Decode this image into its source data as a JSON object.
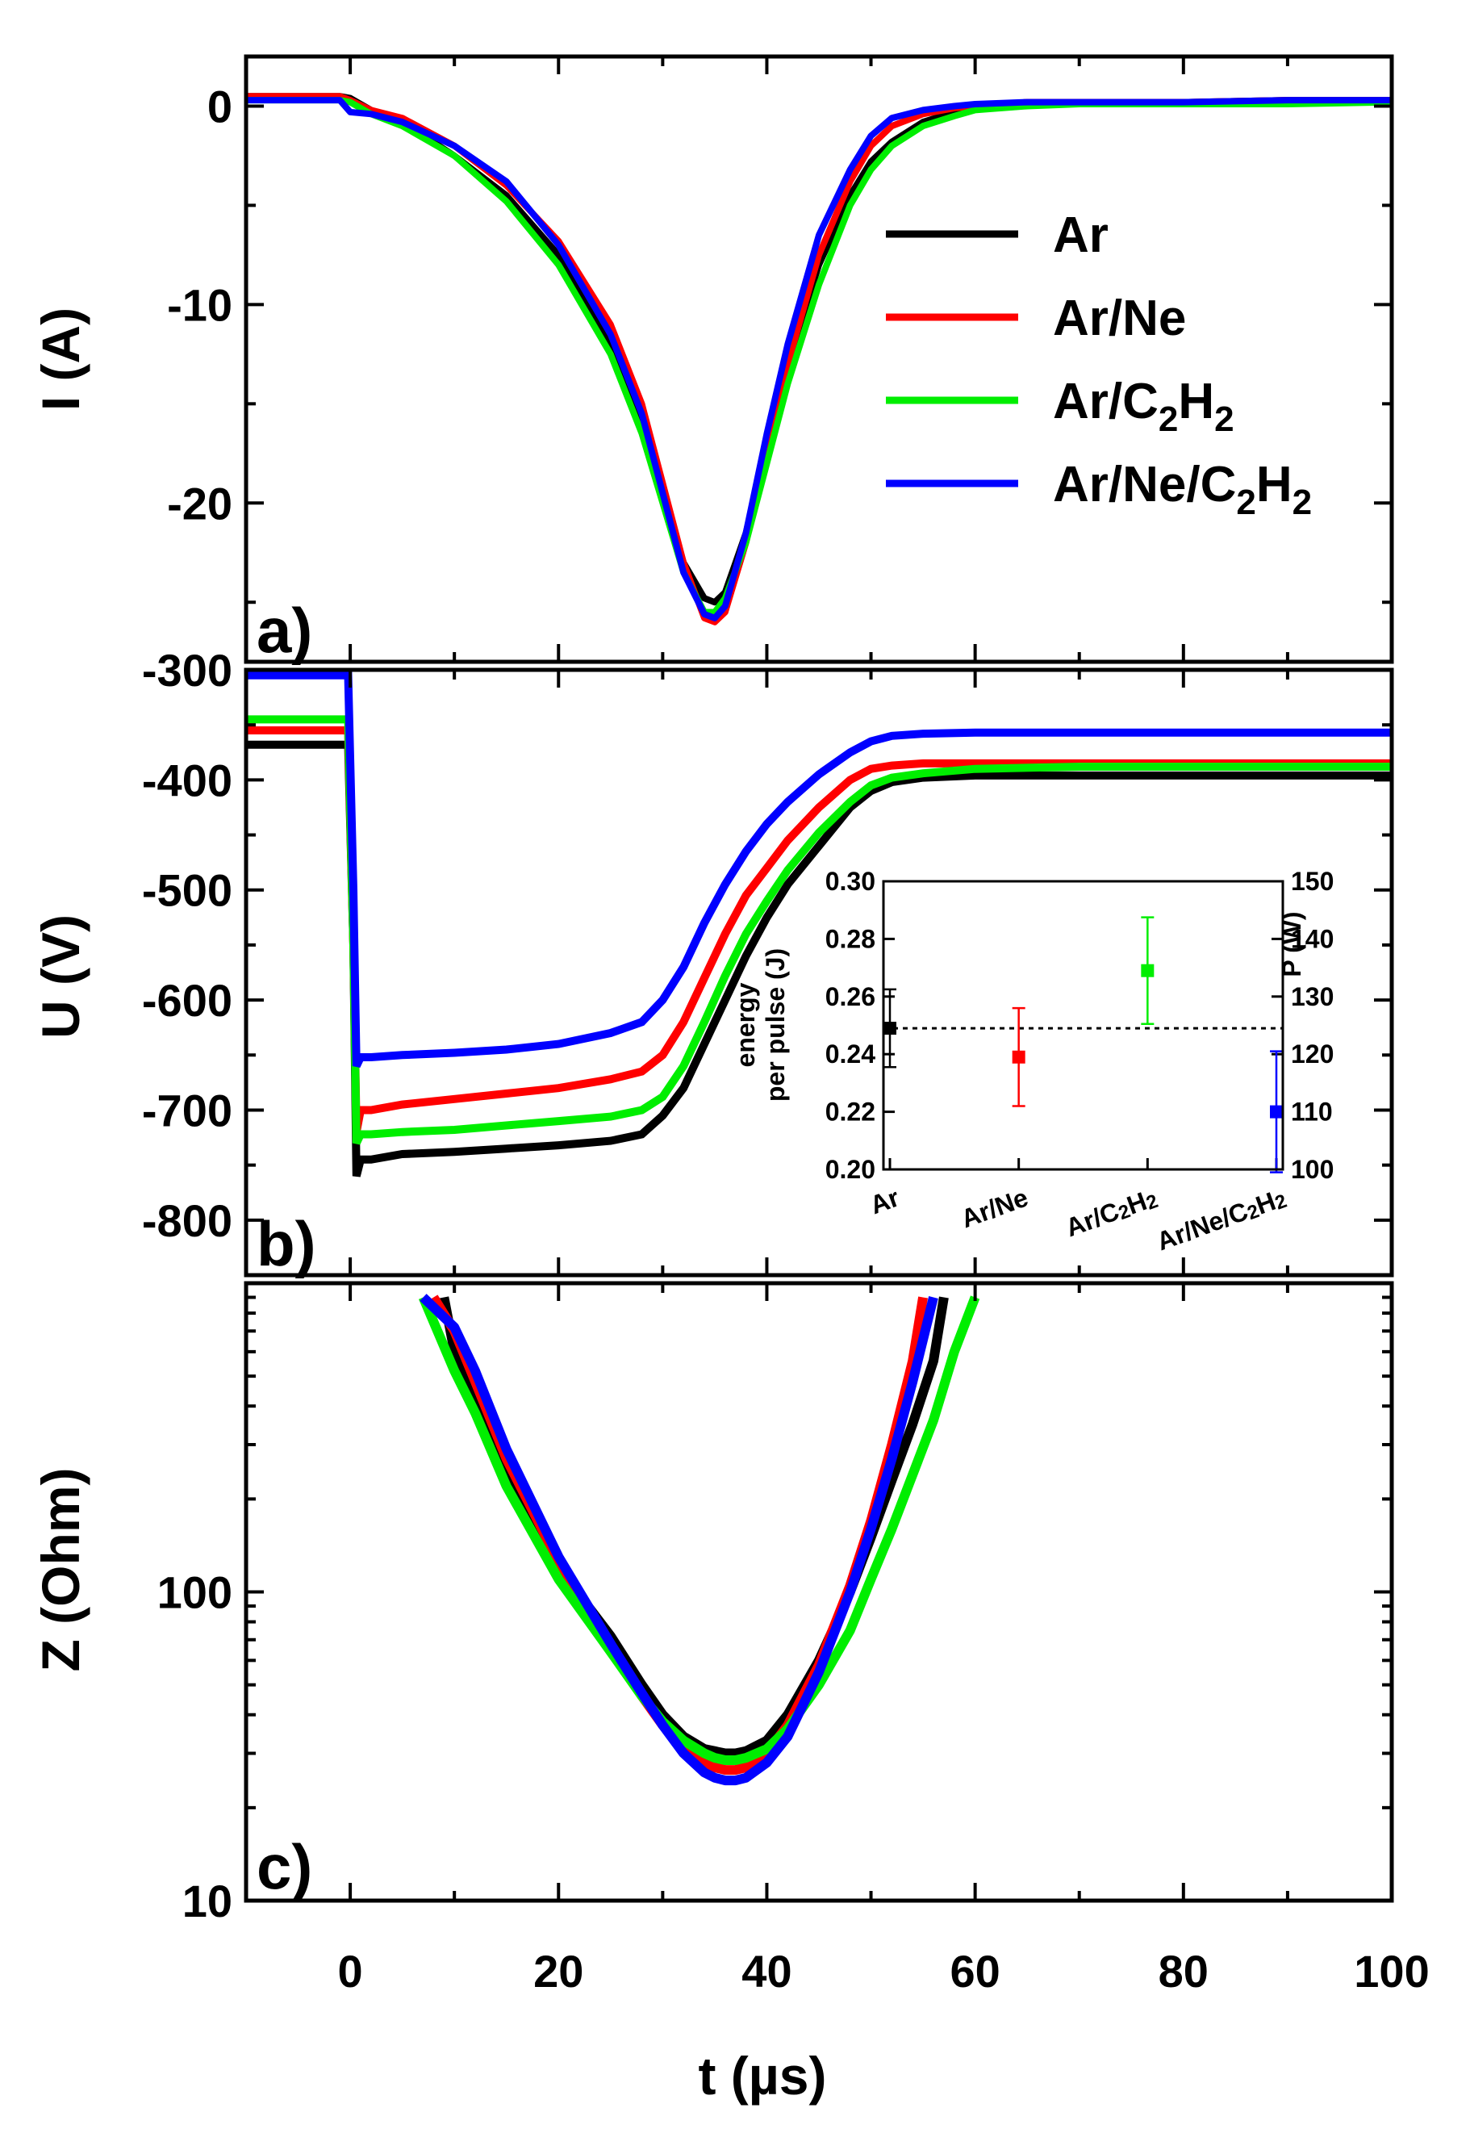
{
  "figure": {
    "shared_x_axis": {
      "title": "t (µs)",
      "ticks": [
        0,
        20,
        40,
        60,
        80,
        100
      ],
      "range": [
        -10,
        100
      ]
    },
    "series_colors": {
      "Ar": "#000000",
      "Ar/Ne": "#ff0000",
      "Ar/C2H2": "#00ee00",
      "Ar/Ne/C2H2": "#0000ff"
    }
  },
  "chart_data": [
    {
      "panel": "a)",
      "type": "line",
      "xlabel": "t (µs)",
      "ylabel": "I (A)",
      "xlim": [
        -10,
        100
      ],
      "ylim": [
        -28,
        2.5
      ],
      "yticks": [
        0,
        -10,
        -20
      ],
      "legend": {
        "placement": "top-right",
        "entries": [
          {
            "name": "Ar",
            "color": "#000000",
            "label_main": "Ar",
            "segments": []
          },
          {
            "name": "Ar/Ne",
            "color": "#ff0000",
            "label_main": "Ar/Ne",
            "segments": []
          },
          {
            "name": "Ar/C2H2",
            "color": "#00ee00",
            "label_main": "Ar/C",
            "segments": [
              {
                "sub": "2"
              },
              {
                "main": "H"
              },
              {
                "sub": "2"
              }
            ]
          },
          {
            "name": "Ar/Ne/C2H2",
            "color": "#0000ff",
            "label_main": "Ar/Ne/C",
            "segments": [
              {
                "sub": "2"
              },
              {
                "main": "H"
              },
              {
                "sub": "2"
              }
            ]
          }
        ]
      },
      "series": [
        {
          "name": "Ar",
          "color": "#000000",
          "x": [
            -10,
            -1,
            0,
            2,
            5,
            10,
            15,
            20,
            25,
            28,
            30,
            32,
            34,
            35,
            36,
            38,
            40,
            42,
            45,
            48,
            50,
            52,
            55,
            58,
            60,
            65,
            70,
            80,
            90,
            100
          ],
          "y": [
            0.5,
            0.5,
            0.4,
            -0.2,
            -0.8,
            -2.5,
            -4.5,
            -7.5,
            -12,
            -16,
            -19.5,
            -23,
            -24.8,
            -25,
            -24.5,
            -21.5,
            -17,
            -13,
            -8,
            -4.5,
            -2.8,
            -1.8,
            -0.8,
            -0.3,
            0,
            0.2,
            0.2,
            0.2,
            0.3,
            0.3
          ]
        },
        {
          "name": "Ar/Ne",
          "color": "#ff0000",
          "x": [
            -10,
            -1,
            0,
            2,
            5,
            10,
            15,
            20,
            25,
            28,
            30,
            32,
            34,
            35,
            36,
            38,
            40,
            42,
            45,
            48,
            50,
            52,
            55,
            58,
            60,
            65,
            70,
            80,
            90,
            100
          ],
          "y": [
            0.5,
            0.5,
            0.3,
            -0.2,
            -0.6,
            -2,
            -4,
            -6.8,
            -11,
            -15,
            -19,
            -23,
            -25.8,
            -26,
            -25.5,
            -22,
            -17.5,
            -13,
            -7.5,
            -3.8,
            -2,
            -1,
            -0.4,
            -0.1,
            0,
            0.2,
            0.2,
            0.2,
            0.3,
            0.3
          ]
        },
        {
          "name": "Ar/C2H2",
          "color": "#00ee00",
          "x": [
            -10,
            -1,
            0,
            2,
            5,
            10,
            15,
            20,
            25,
            28,
            30,
            32,
            34,
            35,
            36,
            38,
            40,
            42,
            45,
            48,
            50,
            52,
            55,
            58,
            60,
            65,
            70,
            80,
            90,
            100
          ],
          "y": [
            0.3,
            0.3,
            0.2,
            -0.4,
            -1,
            -2.5,
            -4.8,
            -8,
            -12.5,
            -16.5,
            -20,
            -23.5,
            -25.5,
            -25.5,
            -24.8,
            -22,
            -18,
            -14,
            -9,
            -5,
            -3.2,
            -2,
            -1,
            -0.5,
            -0.2,
            0,
            0.1,
            0.1,
            0.1,
            0.2
          ]
        },
        {
          "name": "Ar/Ne/C2H2",
          "color": "#0000ff",
          "x": [
            -10,
            -1,
            0,
            2,
            5,
            10,
            15,
            20,
            25,
            28,
            30,
            32,
            34,
            35,
            36,
            38,
            40,
            42,
            45,
            48,
            50,
            52,
            55,
            58,
            60,
            65,
            70,
            80,
            90,
            100
          ],
          "y": [
            0.3,
            0.3,
            -0.3,
            -0.4,
            -0.8,
            -2,
            -3.8,
            -7,
            -11.5,
            -15.5,
            -19.5,
            -23.5,
            -25.6,
            -25.8,
            -25.2,
            -21.5,
            -16.5,
            -12,
            -6.5,
            -3.2,
            -1.5,
            -0.6,
            -0.2,
            0,
            0.1,
            0.2,
            0.2,
            0.2,
            0.3,
            0.3
          ]
        }
      ]
    },
    {
      "panel": "b)",
      "type": "line",
      "xlabel": "t (µs)",
      "ylabel": "U (V)",
      "xlim": [
        -10,
        100
      ],
      "ylim": [
        -850,
        -300
      ],
      "yticks": [
        -300,
        -400,
        -500,
        -600,
        -700,
        -800
      ],
      "series": [
        {
          "name": "Ar",
          "color": "#000000",
          "x": [
            -10,
            -0.2,
            0.3,
            0.6,
            1,
            2,
            5,
            10,
            15,
            20,
            25,
            28,
            30,
            32,
            34,
            36,
            38,
            40,
            42,
            45,
            48,
            50,
            52,
            55,
            60,
            70,
            80,
            90,
            100
          ],
          "y": [
            -368,
            -368,
            -550,
            -760,
            -745,
            -745,
            -740,
            -738,
            -735,
            -732,
            -728,
            -722,
            -705,
            -680,
            -640,
            -600,
            -560,
            -525,
            -495,
            -460,
            -425,
            -410,
            -402,
            -398,
            -396,
            -396,
            -396,
            -396,
            -396
          ]
        },
        {
          "name": "Ar/Ne",
          "color": "#ff0000",
          "x": [
            -10,
            -0.2,
            0.3,
            0.6,
            1,
            2,
            5,
            10,
            15,
            20,
            25,
            28,
            30,
            32,
            34,
            36,
            38,
            40,
            42,
            45,
            48,
            50,
            52,
            55,
            60,
            70,
            80,
            90,
            100
          ],
          "y": [
            -355,
            -355,
            -550,
            -720,
            -700,
            -700,
            -695,
            -690,
            -685,
            -680,
            -672,
            -665,
            -650,
            -620,
            -580,
            -540,
            -505,
            -480,
            -455,
            -425,
            -400,
            -390,
            -387,
            -385,
            -385,
            -385,
            -385,
            -385,
            -385
          ]
        },
        {
          "name": "Ar/C2H2",
          "color": "#00ee00",
          "x": [
            -10,
            -0.2,
            0.3,
            0.6,
            1,
            2,
            5,
            10,
            15,
            20,
            25,
            28,
            30,
            32,
            34,
            36,
            38,
            40,
            42,
            45,
            48,
            50,
            52,
            55,
            60,
            70,
            80,
            90,
            100
          ],
          "y": [
            -345,
            -345,
            -550,
            -730,
            -722,
            -722,
            -720,
            -718,
            -714,
            -710,
            -706,
            -700,
            -688,
            -660,
            -620,
            -578,
            -540,
            -510,
            -482,
            -448,
            -420,
            -405,
            -398,
            -394,
            -390,
            -388,
            -388,
            -388,
            -388
          ]
        },
        {
          "name": "Ar/Ne/C2H2",
          "color": "#0000ff",
          "x": [
            -10,
            -0.2,
            0.3,
            0.6,
            1,
            2,
            5,
            10,
            15,
            20,
            25,
            28,
            30,
            32,
            34,
            36,
            38,
            40,
            42,
            45,
            48,
            50,
            52,
            55,
            60,
            70,
            80,
            90,
            100
          ],
          "y": [
            -305,
            -305,
            -500,
            -660,
            -652,
            -652,
            -650,
            -648,
            -645,
            -640,
            -630,
            -620,
            -600,
            -570,
            -530,
            -495,
            -465,
            -440,
            -420,
            -395,
            -375,
            -365,
            -360,
            -358,
            -357,
            -357,
            -357,
            -357,
            -357
          ]
        }
      ]
    },
    {
      "panel": "b) inset",
      "type": "scatter",
      "categories": [
        "Ar",
        "Ar/Ne",
        "Ar/C2H2",
        "Ar/Ne/C2H2"
      ],
      "category_labels": [
        {
          "main": "Ar",
          "segments": []
        },
        {
          "main": "Ar/Ne",
          "segments": []
        },
        {
          "main": "Ar/C",
          "segments": [
            {
              "sub": "2"
            },
            {
              "main": "H"
            },
            {
              "sub": "2"
            }
          ]
        },
        {
          "main": "Ar/Ne/C",
          "segments": [
            {
              "sub": "2"
            },
            {
              "main": "H"
            },
            {
              "sub": "2"
            }
          ]
        }
      ],
      "ylabel_line1": "energy",
      "ylabel_line2": "per pulse (J)",
      "y2label": "P (W)",
      "ylim": [
        0.2,
        0.3
      ],
      "yticks": [
        "0.20",
        "0.22",
        "0.24",
        "0.26",
        "0.28",
        "0.30"
      ],
      "y2lim": [
        100,
        150
      ],
      "y2ticks": [
        "100",
        "110",
        "120",
        "130",
        "140",
        "150"
      ],
      "reference_line": 0.249,
      "series": [
        {
          "name": "energy per pulse",
          "values": [
            0.249,
            0.239,
            0.269,
            0.22
          ],
          "errors": [
            0.0135,
            0.017,
            0.0185,
            0.021
          ],
          "colors": [
            "#000000",
            "#ff0000",
            "#00ee00",
            "#0000ff"
          ]
        }
      ]
    },
    {
      "panel": "c)",
      "type": "line",
      "xlabel": "t (µs)",
      "ylabel": "Z (Ohm)",
      "y_scale": "log",
      "xlim": [
        -10,
        100
      ],
      "ylim": [
        10,
        1000
      ],
      "yticks": [
        "10",
        "100"
      ],
      "series": [
        {
          "name": "Ar",
          "color": "#000000",
          "x": [
            9,
            10,
            12,
            15,
            20,
            25,
            28,
            30,
            32,
            34,
            35,
            36,
            37,
            38,
            40,
            42,
            45,
            48,
            50,
            52,
            54,
            56,
            57
          ],
          "y": [
            900,
            600,
            420,
            240,
            120,
            72,
            50,
            40,
            34,
            31,
            30.5,
            30,
            30,
            30.5,
            33,
            40,
            60,
            100,
            150,
            230,
            350,
            560,
            900
          ]
        },
        {
          "name": "Ar/Ne",
          "color": "#ff0000",
          "x": [
            8,
            10,
            12,
            15,
            20,
            25,
            28,
            30,
            32,
            34,
            35,
            36,
            37,
            38,
            40,
            42,
            45,
            48,
            50,
            52,
            54,
            55
          ],
          "y": [
            900,
            700,
            480,
            270,
            125,
            66,
            46,
            37,
            31,
            28,
            27,
            26.5,
            26.5,
            27,
            30,
            37,
            58,
            105,
            170,
            300,
            560,
            900
          ]
        },
        {
          "name": "Ar/C2H2",
          "color": "#00ee00",
          "x": [
            7,
            10,
            12,
            15,
            20,
            25,
            28,
            30,
            32,
            34,
            35,
            36,
            37,
            38,
            40,
            42,
            45,
            48,
            50,
            52,
            54,
            56,
            58,
            60
          ],
          "y": [
            900,
            520,
            380,
            220,
            110,
            64,
            46,
            38,
            33,
            30,
            29,
            28.5,
            28.5,
            29,
            31,
            36,
            50,
            75,
            110,
            160,
            240,
            360,
            600,
            900
          ]
        },
        {
          "name": "Ar/Ne/C2H2",
          "color": "#0000ff",
          "x": [
            7,
            10,
            12,
            15,
            20,
            25,
            28,
            30,
            32,
            34,
            35,
            36,
            37,
            38,
            40,
            42,
            45,
            48,
            50,
            52,
            54,
            56
          ],
          "y": [
            900,
            720,
            520,
            290,
            130,
            68,
            47,
            37,
            30,
            26,
            25,
            24.5,
            24.5,
            25,
            28,
            34,
            55,
            100,
            160,
            270,
            480,
            900
          ]
        }
      ]
    }
  ]
}
